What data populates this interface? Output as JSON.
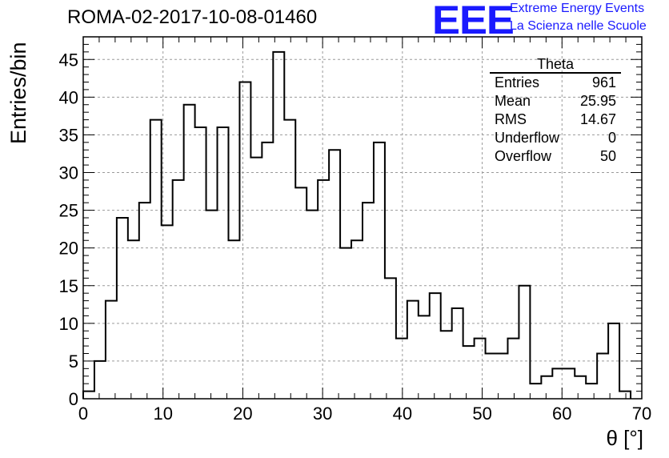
{
  "title": "ROMA-02-2017-10-08-01460",
  "logo": {
    "text": "EEE",
    "line1": "Extreme Energy Events",
    "line2": "La Scienza nelle Scuole",
    "color": "#1a1aff"
  },
  "stats": {
    "name": "Theta",
    "rows": [
      {
        "label": "Entries",
        "value": "961"
      },
      {
        "label": "Mean",
        "value": "25.95"
      },
      {
        "label": "RMS",
        "value": "14.67"
      },
      {
        "label": "Underflow",
        "value": "0"
      },
      {
        "label": "Overflow",
        "value": "50"
      }
    ]
  },
  "chart_data": {
    "type": "bar",
    "style": "step-histogram",
    "xlabel": "θ [°]",
    "ylabel": "Entries/bin",
    "xlim": [
      0,
      70
    ],
    "ylim": [
      0,
      48
    ],
    "grid": true,
    "bin_width": 1.4,
    "x_start": 0,
    "values": [
      1,
      5,
      13,
      24,
      21,
      26,
      37,
      23,
      29,
      39,
      36,
      25,
      36,
      21,
      42,
      32,
      34,
      46,
      37,
      28,
      25,
      29,
      33,
      20,
      21,
      26,
      34,
      16,
      8,
      13,
      11,
      14,
      9,
      12,
      7,
      8,
      6,
      6,
      8,
      15,
      2,
      3,
      4,
      4,
      3,
      2,
      6,
      10,
      1
    ],
    "xticks": [
      "0",
      "10",
      "20",
      "30",
      "40",
      "50",
      "60",
      "70"
    ],
    "yticks": [
      "0",
      "5",
      "10",
      "15",
      "20",
      "25",
      "30",
      "35",
      "40",
      "45"
    ]
  }
}
